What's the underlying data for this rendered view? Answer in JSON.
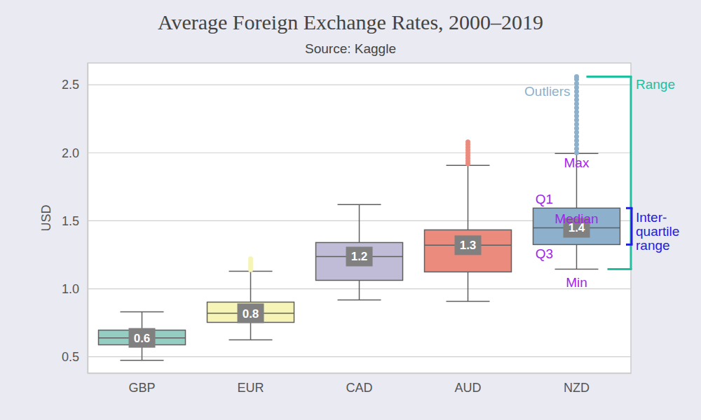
{
  "chart_data": {
    "type": "box",
    "title": "Average Foreign Exchange Rates, 2000–2019",
    "subtitle": "Source: Kaggle",
    "y_label": "USD",
    "categories": [
      "GBP",
      "EUR",
      "CAD",
      "AUD",
      "NZD"
    ],
    "colors": [
      "#95cdc2",
      "#f6f4b6",
      "#c0bbd6",
      "#ea8b7e",
      "#8db1cc"
    ],
    "min": [
      0.474,
      0.624,
      0.918,
      0.907,
      1.144
    ],
    "q1": [
      0.588,
      0.753,
      1.062,
      1.124,
      1.325
    ],
    "median": [
      0.639,
      0.82,
      1.237,
      1.32,
      1.448
    ],
    "value_labels": [
      "0.6",
      "0.8",
      "1.2",
      "1.3",
      "1.4"
    ],
    "q3": [
      0.696,
      0.902,
      1.34,
      1.433,
      1.593
    ],
    "max": [
      0.83,
      1.129,
      1.619,
      1.907,
      1.995
    ],
    "outliers": [
      [],
      [
        1.14,
        1.16,
        1.18,
        1.2,
        1.22
      ],
      [],
      [
        1.92,
        1.94,
        1.96,
        1.98,
        2.0,
        2.02,
        2.04,
        2.06,
        2.08
      ],
      [
        2.0,
        2.03,
        2.06,
        2.09,
        2.12,
        2.15,
        2.18,
        2.21,
        2.24,
        2.27,
        2.3,
        2.33,
        2.36,
        2.39,
        2.42,
        2.45,
        2.48,
        2.51,
        2.54,
        2.56
      ]
    ],
    "ylim": [
      0.38,
      2.66
    ],
    "yticks": [
      0.5,
      {
        "value": 1,
        "label": "1.0"
      },
      1.5,
      {
        "value": 2,
        "label": "2.0"
      },
      2.5
    ],
    "grid": true,
    "data_labels": true,
    "annotations": [
      "Outliers",
      "Max",
      "Q1",
      "Median",
      "Q3",
      "Min",
      "Range",
      "Inter-\nquartile\nrange"
    ]
  }
}
